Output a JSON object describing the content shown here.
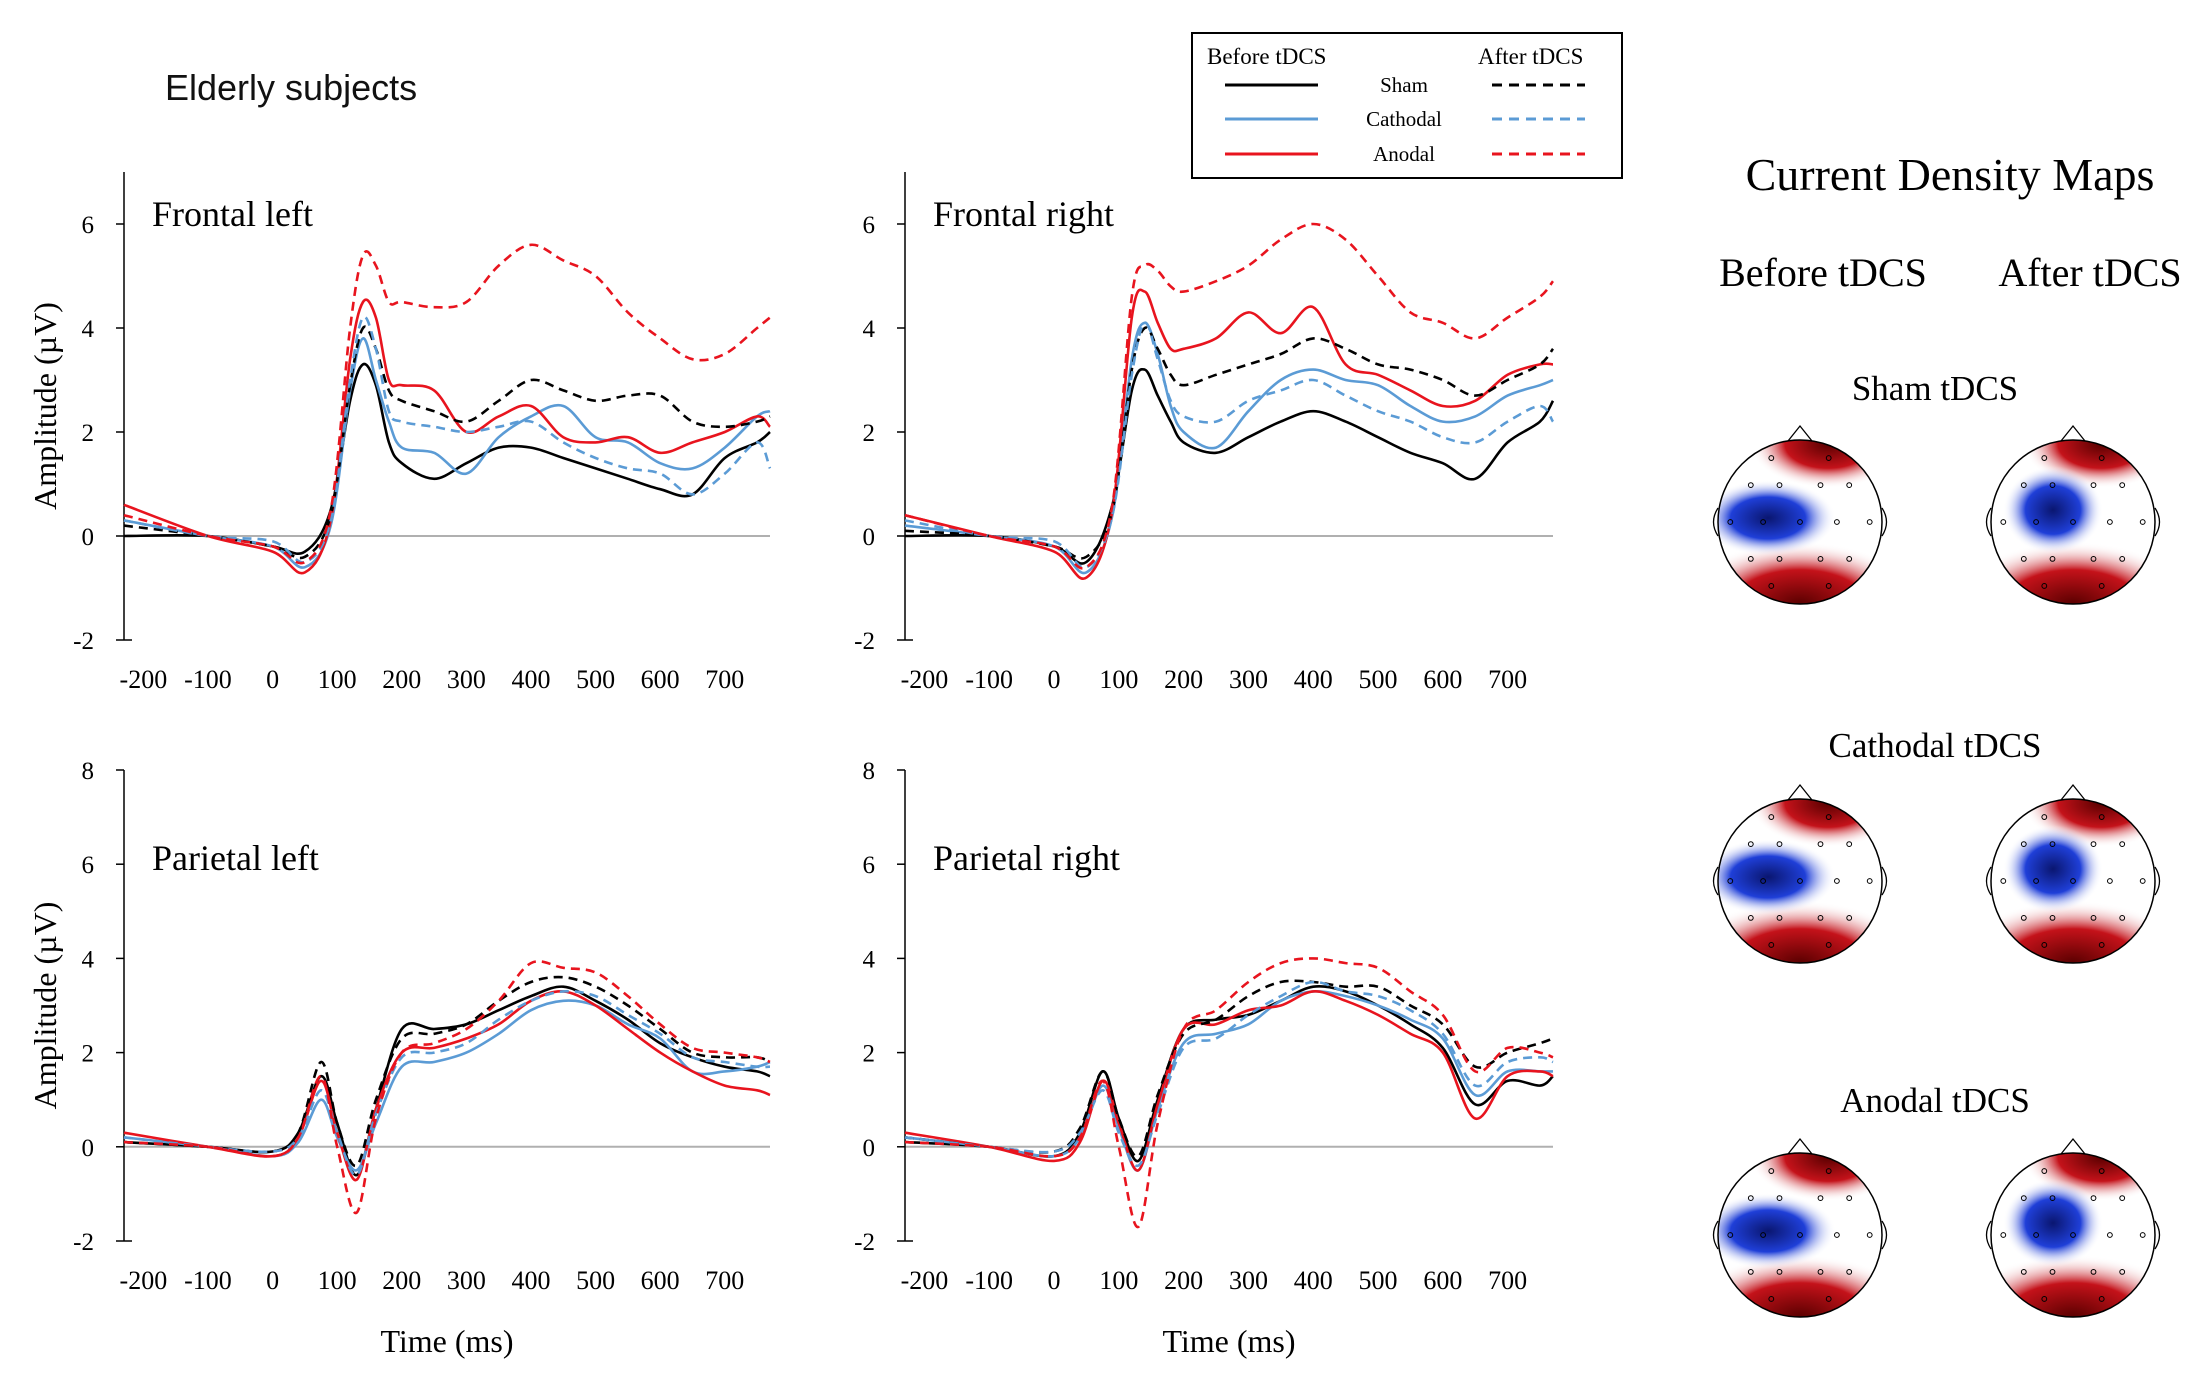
{
  "figure_title": "Elderly subjects",
  "legend": {
    "before_label": "Before tDCS",
    "after_label": "After tDCS",
    "entries": [
      {
        "name": "Sham",
        "color": "#000000"
      },
      {
        "name": "Cathodal",
        "color": "#5b9bd5"
      },
      {
        "name": "Anodal",
        "color": "#e8141e"
      }
    ]
  },
  "colors": {
    "sham": "#000000",
    "cathodal": "#5b9bd5",
    "anodal": "#e8141e",
    "axis": "#000000",
    "zero_line": "#b0b0b0"
  },
  "xlabel": "Time (ms)",
  "ylabel": "Amplitude (µV)",
  "chart_data": [
    {
      "type": "line",
      "title": "Frontal left",
      "xlabel": "",
      "ylabel": "Amplitude (µV)",
      "xlim": [
        -230,
        770
      ],
      "ylim": [
        -2,
        7
      ],
      "xticks": [
        -200,
        -100,
        0,
        100,
        200,
        300,
        400,
        500,
        600,
        700
      ],
      "yticks": [
        -2,
        0,
        2,
        4,
        6
      ],
      "x": [
        -230,
        -100,
        0,
        50,
        90,
        120,
        140,
        160,
        180,
        200,
        250,
        300,
        350,
        400,
        450,
        500,
        550,
        600,
        650,
        700,
        750,
        770
      ],
      "series": [
        {
          "name": "Sham before",
          "style": "solid",
          "values": [
            0,
            0,
            -0.2,
            -0.3,
            0.5,
            2.6,
            3.3,
            2.9,
            1.8,
            1.4,
            1.1,
            1.4,
            1.7,
            1.7,
            1.5,
            1.3,
            1.1,
            0.9,
            0.8,
            1.5,
            1.8,
            2.0
          ]
        },
        {
          "name": "Cathodal before",
          "style": "solid",
          "values": [
            0.3,
            0,
            -0.2,
            -0.6,
            0.2,
            2.8,
            3.8,
            3.0,
            2.2,
            1.7,
            1.6,
            1.2,
            1.9,
            2.3,
            2.5,
            1.9,
            1.8,
            1.4,
            1.3,
            1.7,
            2.3,
            2.4
          ]
        },
        {
          "name": "Anodal before",
          "style": "solid",
          "values": [
            0.6,
            0,
            -0.3,
            -0.7,
            0.3,
            3.4,
            4.5,
            4.2,
            3.0,
            2.9,
            2.8,
            2.0,
            2.3,
            2.5,
            1.9,
            1.8,
            1.9,
            1.6,
            1.8,
            2.0,
            2.3,
            2.1
          ]
        },
        {
          "name": "Sham after",
          "style": "dashed",
          "values": [
            0.2,
            0,
            -0.2,
            -0.4,
            0.4,
            2.9,
            4.0,
            3.6,
            2.8,
            2.6,
            2.4,
            2.2,
            2.6,
            3.0,
            2.8,
            2.6,
            2.7,
            2.7,
            2.2,
            2.1,
            2.2,
            2.3
          ]
        },
        {
          "name": "Cathodal after",
          "style": "dashed",
          "values": [
            0.3,
            0,
            -0.1,
            -0.5,
            0.3,
            3.0,
            4.2,
            3.6,
            2.4,
            2.2,
            2.1,
            2.0,
            2.1,
            2.2,
            1.8,
            1.5,
            1.3,
            1.2,
            0.8,
            1.2,
            1.8,
            1.3
          ]
        },
        {
          "name": "Anodal after",
          "style": "dashed",
          "values": [
            0.4,
            0,
            -0.2,
            -0.5,
            0.5,
            4.0,
            5.4,
            5.2,
            4.5,
            4.5,
            4.4,
            4.5,
            5.2,
            5.6,
            5.3,
            5.0,
            4.3,
            3.8,
            3.4,
            3.5,
            4.0,
            4.2
          ]
        }
      ]
    },
    {
      "type": "line",
      "title": "Frontal right",
      "xlabel": "",
      "ylabel": "",
      "xlim": [
        -230,
        770
      ],
      "ylim": [
        -2,
        7
      ],
      "xticks": [
        -200,
        -100,
        0,
        100,
        200,
        300,
        400,
        500,
        600,
        700
      ],
      "yticks": [
        -2,
        0,
        2,
        4,
        6
      ],
      "x": [
        -230,
        -100,
        0,
        50,
        90,
        120,
        140,
        160,
        180,
        200,
        250,
        300,
        350,
        400,
        450,
        500,
        550,
        600,
        650,
        700,
        750,
        770
      ],
      "series": [
        {
          "name": "Sham before",
          "style": "solid",
          "values": [
            0,
            0,
            -0.2,
            -0.5,
            0.6,
            2.8,
            3.2,
            2.7,
            2.2,
            1.8,
            1.6,
            1.9,
            2.2,
            2.4,
            2.2,
            1.9,
            1.6,
            1.4,
            1.1,
            1.8,
            2.2,
            2.6
          ]
        },
        {
          "name": "Cathodal before",
          "style": "solid",
          "values": [
            0.2,
            0,
            -0.2,
            -0.7,
            0.4,
            3.4,
            4.1,
            3.5,
            2.5,
            2.0,
            1.7,
            2.4,
            3.0,
            3.2,
            3.0,
            2.9,
            2.5,
            2.2,
            2.3,
            2.7,
            2.9,
            3.0
          ]
        },
        {
          "name": "Anodal before",
          "style": "solid",
          "values": [
            0.4,
            0,
            -0.3,
            -0.8,
            0.5,
            4.2,
            4.7,
            4.1,
            3.6,
            3.6,
            3.8,
            4.3,
            3.9,
            4.4,
            3.3,
            3.1,
            2.8,
            2.5,
            2.6,
            3.1,
            3.3,
            3.3
          ]
        },
        {
          "name": "Sham after",
          "style": "dashed",
          "values": [
            0.1,
            0,
            -0.2,
            -0.4,
            0.5,
            3.2,
            4.0,
            3.6,
            3.1,
            2.9,
            3.1,
            3.3,
            3.5,
            3.8,
            3.6,
            3.3,
            3.2,
            3.0,
            2.7,
            3.0,
            3.3,
            3.6
          ]
        },
        {
          "name": "Cathodal after",
          "style": "dashed",
          "values": [
            0.3,
            0,
            -0.1,
            -0.6,
            0.4,
            3.1,
            4.1,
            3.4,
            2.6,
            2.3,
            2.2,
            2.6,
            2.8,
            3.0,
            2.7,
            2.4,
            2.2,
            1.9,
            1.8,
            2.2,
            2.5,
            2.2
          ]
        },
        {
          "name": "Anodal after",
          "style": "dashed",
          "values": [
            0.4,
            0,
            -0.2,
            -0.6,
            0.6,
            4.6,
            5.2,
            5.1,
            4.8,
            4.7,
            4.9,
            5.2,
            5.7,
            6.0,
            5.7,
            5.0,
            4.3,
            4.1,
            3.8,
            4.2,
            4.6,
            4.9
          ]
        }
      ]
    },
    {
      "type": "line",
      "title": "Parietal left",
      "xlabel": "Time (ms)",
      "ylabel": "Amplitude (µV)",
      "xlim": [
        -230,
        770
      ],
      "ylim": [
        -2,
        8
      ],
      "xticks": [
        -200,
        -100,
        0,
        100,
        200,
        300,
        400,
        500,
        600,
        700
      ],
      "yticks": [
        -2,
        0,
        2,
        4,
        6,
        8
      ],
      "x": [
        -230,
        -100,
        0,
        40,
        75,
        100,
        130,
        160,
        200,
        250,
        300,
        350,
        400,
        450,
        500,
        550,
        600,
        650,
        700,
        750,
        770
      ],
      "series": [
        {
          "name": "Sham before",
          "style": "solid",
          "values": [
            0.1,
            0,
            -0.1,
            0.3,
            1.5,
            0.5,
            -0.6,
            0.8,
            2.5,
            2.5,
            2.6,
            2.9,
            3.2,
            3.4,
            3.1,
            2.7,
            2.2,
            1.9,
            1.7,
            1.6,
            1.5
          ]
        },
        {
          "name": "Cathodal before",
          "style": "solid",
          "values": [
            0.2,
            0,
            -0.2,
            0.1,
            1.0,
            0.2,
            -0.5,
            0.5,
            1.7,
            1.8,
            2.0,
            2.4,
            2.9,
            3.1,
            3.0,
            2.6,
            2.3,
            1.6,
            1.6,
            1.7,
            1.8
          ]
        },
        {
          "name": "Anodal before",
          "style": "solid",
          "values": [
            0.3,
            0,
            -0.2,
            0.2,
            1.4,
            0.3,
            -0.7,
            0.8,
            2.0,
            2.1,
            2.3,
            2.6,
            3.1,
            3.3,
            3.0,
            2.5,
            2.0,
            1.6,
            1.3,
            1.2,
            1.1
          ]
        },
        {
          "name": "Sham after",
          "style": "dashed",
          "values": [
            0.1,
            0,
            -0.1,
            0.3,
            1.8,
            0.5,
            -0.4,
            1.0,
            2.3,
            2.4,
            2.6,
            3.1,
            3.5,
            3.6,
            3.4,
            3.0,
            2.5,
            2.0,
            1.9,
            1.9,
            1.8
          ]
        },
        {
          "name": "Cathodal after",
          "style": "dashed",
          "values": [
            0.2,
            0,
            -0.1,
            0.2,
            1.2,
            0.3,
            -0.6,
            0.7,
            1.9,
            2.0,
            2.2,
            2.7,
            3.1,
            3.3,
            3.2,
            2.8,
            2.4,
            1.9,
            1.8,
            1.7,
            1.7
          ]
        },
        {
          "name": "Anodal after",
          "style": "dashed",
          "values": [
            0.1,
            0,
            -0.2,
            0.2,
            1.5,
            0.0,
            -1.4,
            0.6,
            2.0,
            2.2,
            2.5,
            3.1,
            3.9,
            3.8,
            3.7,
            3.2,
            2.6,
            2.1,
            2.0,
            1.9,
            1.8
          ]
        }
      ]
    },
    {
      "type": "line",
      "title": "Parietal right",
      "xlabel": "Time (ms)",
      "ylabel": "",
      "xlim": [
        -230,
        770
      ],
      "ylim": [
        -2,
        8
      ],
      "xticks": [
        -200,
        -100,
        0,
        100,
        200,
        300,
        400,
        500,
        600,
        700
      ],
      "yticks": [
        -2,
        0,
        2,
        4,
        6,
        8
      ],
      "x": [
        -230,
        -100,
        0,
        40,
        75,
        100,
        130,
        160,
        200,
        250,
        300,
        350,
        400,
        450,
        500,
        550,
        600,
        650,
        700,
        750,
        770
      ],
      "series": [
        {
          "name": "Sham before",
          "style": "solid",
          "values": [
            0.1,
            0,
            -0.2,
            0.3,
            1.6,
            0.6,
            -0.3,
            1.0,
            2.5,
            2.7,
            2.8,
            3.1,
            3.4,
            3.3,
            3.0,
            2.6,
            2.1,
            0.9,
            1.4,
            1.3,
            1.5
          ]
        },
        {
          "name": "Cathodal before",
          "style": "solid",
          "values": [
            0.2,
            0,
            -0.2,
            0.2,
            1.3,
            0.4,
            -0.5,
            0.8,
            2.2,
            2.4,
            2.6,
            3.1,
            3.3,
            3.2,
            3.0,
            2.7,
            2.3,
            1.1,
            1.6,
            1.6,
            1.6
          ]
        },
        {
          "name": "Anodal before",
          "style": "solid",
          "values": [
            0.3,
            0,
            -0.3,
            0.1,
            1.4,
            0.5,
            -0.5,
            0.9,
            2.5,
            2.6,
            2.9,
            3.0,
            3.3,
            3.1,
            2.8,
            2.4,
            2.0,
            0.6,
            1.5,
            1.6,
            1.5
          ]
        },
        {
          "name": "Sham after",
          "style": "dashed",
          "values": [
            0.2,
            0,
            -0.1,
            0.4,
            1.6,
            0.6,
            -0.2,
            1.1,
            2.4,
            2.7,
            3.2,
            3.5,
            3.5,
            3.4,
            3.4,
            3.0,
            2.6,
            1.7,
            2.0,
            2.2,
            2.3
          ]
        },
        {
          "name": "Cathodal after",
          "style": "dashed",
          "values": [
            0.2,
            0,
            -0.1,
            0.3,
            1.2,
            0.3,
            -0.4,
            0.7,
            2.1,
            2.3,
            2.8,
            3.2,
            3.5,
            3.3,
            3.2,
            2.9,
            2.4,
            1.3,
            1.8,
            1.9,
            1.8
          ]
        },
        {
          "name": "Anodal after",
          "style": "dashed",
          "values": [
            0.1,
            0,
            -0.2,
            0.2,
            1.4,
            0.0,
            -1.7,
            0.5,
            2.5,
            2.9,
            3.5,
            3.9,
            4.0,
            3.9,
            3.8,
            3.3,
            2.8,
            1.6,
            2.1,
            2.0,
            1.9
          ]
        }
      ]
    }
  ],
  "maps": {
    "title": "Current Density Maps",
    "before_label": "Before tDCS",
    "after_label": "After tDCS",
    "rows": [
      {
        "label": "Sham tDCS"
      },
      {
        "label": "Cathodal tDCS"
      },
      {
        "label": "Anodal tDCS"
      }
    ],
    "palette": {
      "positive": "#c4121a",
      "positive_dark": "#5a0000",
      "negative": "#1f3fd8",
      "negative_dark": "#0a1670",
      "neutral": "#ffffff"
    }
  }
}
